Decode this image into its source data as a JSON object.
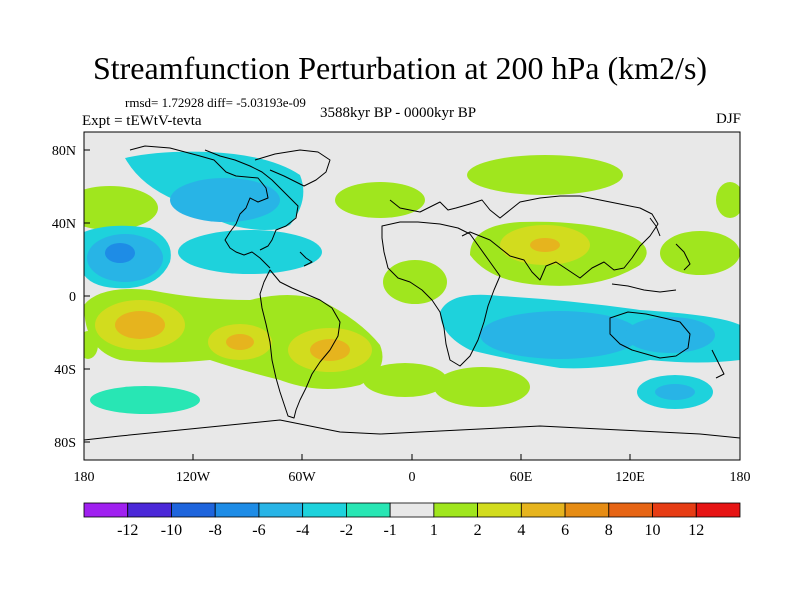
{
  "title": "Streamfunction Perturbation at 200 hPa (km2/s)",
  "stats": "rmsd= 1.72928 diff= -5.03193e-09",
  "experiment": "Expt = tEWtV-tevta",
  "period": "3588kyr BP - 0000kyr BP",
  "season": "DJF",
  "lat_ticks": [
    "80N",
    "40N",
    "0",
    "40S",
    "80S"
  ],
  "lon_ticks": [
    "180",
    "120W",
    "60W",
    "0",
    "60E",
    "120E",
    "180"
  ],
  "colorbar": {
    "labels": [
      "-12",
      "-10",
      "-8",
      "-6",
      "-4",
      "-2",
      "-1",
      "1",
      "2",
      "4",
      "6",
      "8",
      "10",
      "12"
    ],
    "colors": [
      "#a020f0",
      "#4b28d8",
      "#1e64dc",
      "#1e8ce6",
      "#28b4e6",
      "#1ed2dc",
      "#28e6b4",
      "#e8e8e8",
      "#a0e61e",
      "#d2dc1e",
      "#e6b41e",
      "#e68c14",
      "#e66414",
      "#e63c14",
      "#e61414"
    ]
  },
  "regions": [
    {
      "level": "-2",
      "color": "#28b4e6",
      "shape": "north-america-west-atlantic"
    },
    {
      "level": "-4",
      "color": "#1e8ce6",
      "shape": "hawaii-core"
    },
    {
      "level": "2",
      "color": "#d2dc1e",
      "shape": "asia-band"
    },
    {
      "level": "6",
      "color": "#e6b41e",
      "shape": "south-pacific-core"
    },
    {
      "level": "-2",
      "color": "#28b4e6",
      "shape": "indian-ocean-band"
    }
  ]
}
